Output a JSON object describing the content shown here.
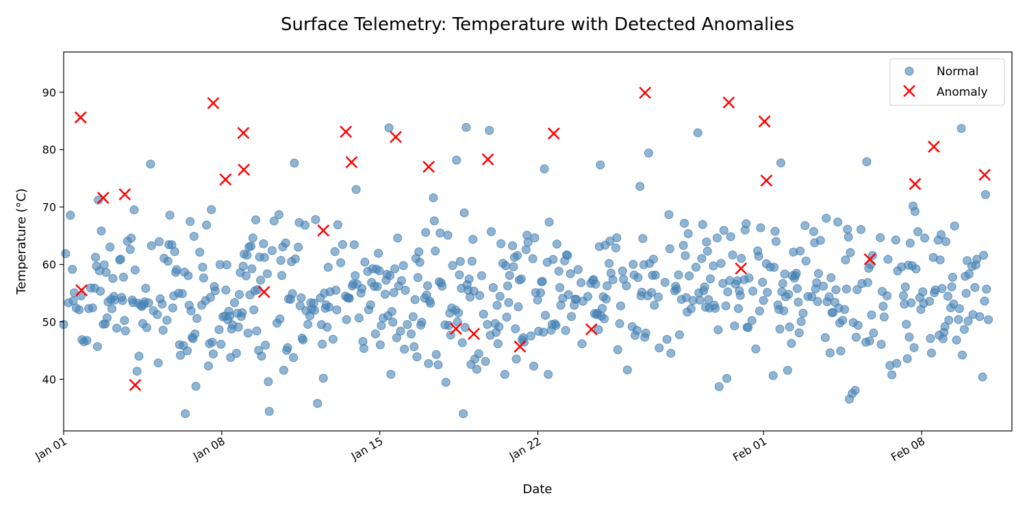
{
  "chart_data": {
    "type": "scatter",
    "title": "Surface Telemetry: Temperature with Detected Anomalies",
    "xlabel": "Date",
    "ylabel": "Temperature (°C)",
    "x_type": "date",
    "xlim": [
      "2024-01-01",
      "2024-02-12"
    ],
    "ylim": [
      31,
      97
    ],
    "xticks": [
      {
        "date": "2024-01-01",
        "label": "Jan 01"
      },
      {
        "date": "2024-01-08",
        "label": "Jan 08"
      },
      {
        "date": "2024-01-15",
        "label": "Jan 15"
      },
      {
        "date": "2024-01-22",
        "label": "Jan 22"
      },
      {
        "date": "2024-02-01",
        "label": "Feb 01"
      },
      {
        "date": "2024-02-08",
        "label": "Feb 08"
      }
    ],
    "yticks": [
      40,
      50,
      60,
      70,
      80,
      90
    ],
    "grid": false,
    "legend": "top-right",
    "series": [
      {
        "name": "Normal",
        "marker": "circle",
        "color": "#4682b4",
        "x_range": [
          "2024-01-01",
          "2024-02-11"
        ],
        "y_typical_range": [
          40,
          70
        ],
        "x": [],
        "y": []
      },
      {
        "name": "Anomaly",
        "marker": "x",
        "color": "#ff0000",
        "x": [
          "2024-01-01 18:00",
          "2024-01-01 19:00",
          "2024-01-02 18:00",
          "2024-01-03 17:00",
          "2024-01-04 04:00",
          "2024-01-07 15:00",
          "2024-01-08 04:00",
          "2024-01-08 23:00",
          "2024-01-08 23:30",
          "2024-01-09 21:00",
          "2024-01-12 12:00",
          "2024-01-13 12:00",
          "2024-01-13 18:00",
          "2024-01-15 17:00",
          "2024-01-17 04:00",
          "2024-01-18 09:00",
          "2024-01-19 04:00",
          "2024-01-19 19:00",
          "2024-01-21 05:00",
          "2024-01-22 17:00",
          "2024-01-24 09:00",
          "2024-01-26 18:00",
          "2024-01-30 11:00",
          "2024-01-31 00:00",
          "2024-02-01 01:00",
          "2024-02-01 03:00",
          "2024-02-05 17:00",
          "2024-02-07 17:00",
          "2024-02-08 13:00",
          "2024-02-10 19:00"
        ],
        "y": [
          85.6,
          55.5,
          71.6,
          72.2,
          39.0,
          88.1,
          74.8,
          82.9,
          76.5,
          55.2,
          65.9,
          83.1,
          77.8,
          82.2,
          77.0,
          48.8,
          47.9,
          78.3,
          45.7,
          82.8,
          48.7,
          89.9,
          88.2,
          59.3,
          84.9,
          74.6,
          60.9,
          74.0,
          80.5,
          75.6
        ]
      }
    ]
  }
}
